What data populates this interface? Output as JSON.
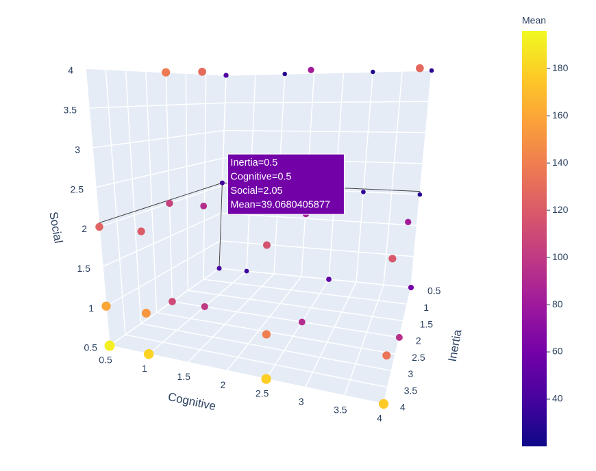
{
  "chart_data": {
    "type": "scatter3d",
    "x_label": "Cognitive",
    "y_label": "Inertia",
    "z_label": "Social",
    "xlim": [
      0.5,
      4
    ],
    "ylim": [
      0.5,
      4
    ],
    "zlim": [
      0.5,
      4
    ],
    "xticks": [
      0.5,
      1,
      1.5,
      2,
      2.5,
      3,
      3.5,
      4
    ],
    "yticks": [
      0.5,
      1,
      1.5,
      2,
      2.5,
      3,
      3.5,
      4
    ],
    "zticks": [
      0.5,
      1,
      1.5,
      2,
      2.5,
      3,
      3.5,
      4
    ],
    "x": [
      0.5,
      1,
      2.5,
      4,
      0.5,
      1,
      2.5,
      4,
      0.5,
      1,
      2.5,
      4,
      0.5,
      1,
      2.5,
      4,
      0.5,
      1,
      2.5,
      4,
      0.5,
      1,
      2.5,
      4,
      0.5,
      1,
      2.5,
      4,
      0.5,
      1.5,
      3,
      4,
      0.5,
      1.5,
      3,
      4
    ],
    "y": [
      4,
      4,
      4,
      4,
      4,
      4,
      4,
      4,
      4,
      4,
      4,
      4,
      2,
      2,
      2,
      2,
      2,
      2,
      2,
      2,
      2,
      2,
      2,
      2,
      0.5,
      0.5,
      0.5,
      0.5,
      0.5,
      0.5,
      0.5,
      0.5,
      0.5,
      0.5,
      0.5,
      0.5
    ],
    "z": [
      0.5,
      0.5,
      0.5,
      0.5,
      1,
      1,
      1,
      1,
      2,
      2,
      2,
      2,
      0.5,
      0.5,
      0.5,
      0.5,
      2,
      2,
      2,
      2,
      4,
      4,
      4,
      4,
      0.5,
      0.5,
      0.5,
      0.5,
      2.05,
      2,
      2,
      2,
      4,
      4,
      4,
      4
    ],
    "values": [
      192,
      180,
      178,
      176,
      160,
      152,
      140,
      135,
      125,
      120,
      115,
      118,
      110,
      100,
      92,
      95,
      105,
      92,
      85,
      82,
      138,
      130,
      82,
      128,
      40,
      36,
      52,
      60,
      39.07,
      35,
      33,
      30,
      45,
      30,
      28,
      30
    ],
    "hover_lines": [
      "Inertia=0.5",
      "Cognitive=0.5",
      "Social=2.05",
      "Mean=39.0680405877"
    ],
    "colorscale": [
      "#0d0887",
      "#46039f",
      "#7201a8",
      "#9c179e",
      "#bd3786",
      "#d8576b",
      "#ed7953",
      "#fb9f3a",
      "#fdca26",
      "#f0f921"
    ],
    "colorbar": {
      "title": "Mean",
      "lim": [
        20,
        196
      ],
      "ticks": [
        40,
        60,
        80,
        100,
        120,
        140,
        160,
        180
      ]
    }
  }
}
